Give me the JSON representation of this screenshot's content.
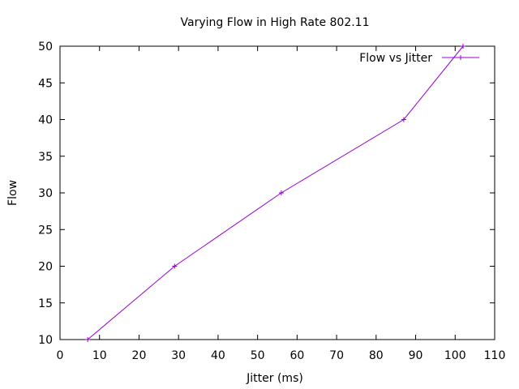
{
  "chart_data": {
    "type": "line",
    "title": "Varying Flow in High Rate 802.11",
    "xlabel": "Jitter (ms)",
    "ylabel": "Flow",
    "xlim": [
      0,
      110
    ],
    "ylim": [
      10,
      50
    ],
    "xticks": [
      0,
      10,
      20,
      30,
      40,
      50,
      60,
      70,
      80,
      90,
      100,
      110
    ],
    "yticks": [
      10,
      15,
      20,
      25,
      30,
      35,
      40,
      45,
      50
    ],
    "grid": false,
    "legend_position": "top-right",
    "series": [
      {
        "name": "Flow vs Jitter",
        "color": "#9400d3",
        "marker": "plus",
        "x": [
          7,
          29,
          56,
          87,
          102
        ],
        "y": [
          10,
          20,
          30,
          40,
          50
        ]
      }
    ]
  }
}
